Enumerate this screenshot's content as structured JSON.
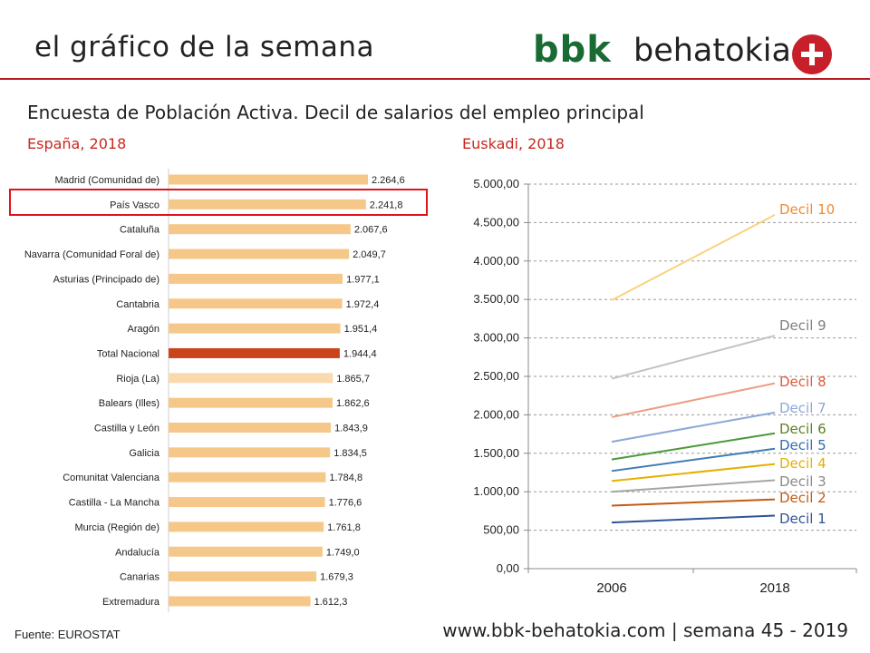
{
  "header": {
    "title": "el gráfico de la semana",
    "brand_bold": "bbk",
    "brand_regular": "behatokia",
    "subtitle": "Encuesta de Población Activa.  Decil de salarios del empleo principal"
  },
  "colors": {
    "accent_red": "#b3191f",
    "brand_green": "#1a6b33",
    "bar": "#f5c88a",
    "bar_total": "#c9441a",
    "bar_rioja": "#f9d9ad"
  },
  "chart_data": [
    {
      "type": "bar",
      "orientation": "horizontal",
      "title": "España, 2018",
      "highlighted_category": "País Vasco",
      "categories": [
        "Madrid (Comunidad de)",
        "País Vasco",
        "Cataluña",
        "Navarra (Comunidad Foral de)",
        "Asturias (Principado de)",
        "Cantabria",
        "Aragón",
        "Total Nacional",
        "Rioja (La)",
        "Balears (Illes)",
        "Castilla y León",
        "Galicia",
        "Comunitat Valenciana",
        "Castilla - La Mancha",
        "Murcia (Región de)",
        "Andalucía",
        "Canarias",
        "Extremadura"
      ],
      "values": [
        2264.6,
        2241.8,
        2067.6,
        2049.7,
        1977.1,
        1972.4,
        1951.4,
        1944.4,
        1865.7,
        1862.6,
        1843.9,
        1834.5,
        1784.8,
        1776.6,
        1761.8,
        1749.0,
        1679.3,
        1612.3
      ],
      "value_labels": [
        "2.264,6",
        "2.241,8",
        "2.067,6",
        "2.049,7",
        "1.977,1",
        "1.972,4",
        "1.951,4",
        "1.944,4",
        "1.865,7",
        "1.862,6",
        "1.843,9",
        "1.834,5",
        "1.784,8",
        "1.776,6",
        "1.761,8",
        "1.749,0",
        "1.679,3",
        "1.612,3"
      ],
      "xlim": [
        0,
        2264.6
      ]
    },
    {
      "type": "line",
      "title": "Euskadi, 2018",
      "x": [
        "2006",
        "2018"
      ],
      "ylim": [
        0,
        5000
      ],
      "yticks": [
        0,
        500,
        1000,
        1500,
        2000,
        2500,
        3000,
        3500,
        4000,
        4500,
        5000
      ],
      "ytick_labels": [
        "0,00",
        "500,00",
        "1.000,00",
        "1.500,00",
        "2.000,00",
        "2.500,00",
        "3.000,00",
        "3.500,00",
        "4.000,00",
        "4.500,00",
        "5.000,00"
      ],
      "grid": true,
      "series": [
        {
          "name": "Decil 1",
          "values": [
            600,
            690
          ],
          "color": "#2e5597"
        },
        {
          "name": "Decil 2",
          "values": [
            820,
            900
          ],
          "color": "#c55a11"
        },
        {
          "name": "Decil 3",
          "values": [
            1000,
            1150
          ],
          "color": "#a5a5a5"
        },
        {
          "name": "Decil 4",
          "values": [
            1140,
            1360
          ],
          "color": "#e6b000"
        },
        {
          "name": "Decil 5",
          "values": [
            1270,
            1560
          ],
          "color": "#3f7cb5"
        },
        {
          "name": "Decil 6",
          "values": [
            1420,
            1760
          ],
          "color": "#4a9a37"
        },
        {
          "name": "Decil 7",
          "values": [
            1650,
            2030
          ],
          "color": "#8ba8d8"
        },
        {
          "name": "Decil 8",
          "values": [
            1970,
            2410
          ],
          "color": "#ec9e80"
        },
        {
          "name": "Decil 9",
          "values": [
            2470,
            3030
          ],
          "color": "#c3c3c3"
        },
        {
          "name": "Decil 10",
          "values": [
            3490,
            4600
          ],
          "color": "#fbd27e"
        }
      ],
      "legend_label_colors": {
        "Decil 1": "#2e5597",
        "Decil 2": "#c55a11",
        "Decil 3": "#8a8a8a",
        "Decil 4": "#e6b000",
        "Decil 5": "#2e6fb2",
        "Decil 6": "#5b7f1f",
        "Decil 7": "#8ba8d8",
        "Decil 8": "#e05a3a",
        "Decil 9": "#7f7f7f",
        "Decil 10": "#f08a30"
      }
    }
  ],
  "footer": {
    "source": "Fuente:  EUROSTAT",
    "website": "www.bbk-behatokia.com | semana 45 - 2019"
  }
}
